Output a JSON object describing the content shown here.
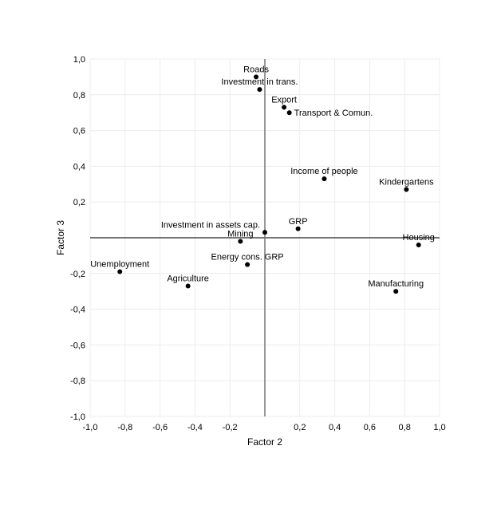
{
  "chart_data": {
    "type": "scatter",
    "title": "",
    "xlabel": "Factor 2",
    "ylabel": "Factor 3",
    "xlim": [
      -1.0,
      1.0
    ],
    "ylim": [
      -1.0,
      1.0
    ],
    "grid": true,
    "x_ticks": [
      "-1,0",
      "-0,8",
      "-0,6",
      "-0,4",
      "-0,2",
      "0,2",
      "0,4",
      "0,6",
      "0,8",
      "1,0"
    ],
    "x_tick_values": [
      -1.0,
      -0.8,
      -0.6,
      -0.4,
      -0.2,
      0.2,
      0.4,
      0.6,
      0.8,
      1.0
    ],
    "y_ticks": [
      "1,0",
      "0,8",
      "0,6",
      "0,4",
      "0,2",
      "-0,2",
      "-0,4",
      "-0,6",
      "-0,8",
      "-1,0"
    ],
    "y_tick_values": [
      1.0,
      0.8,
      0.6,
      0.4,
      0.2,
      -0.2,
      -0.4,
      -0.6,
      -0.8,
      -1.0
    ],
    "points": [
      {
        "label": "Roads",
        "x": -0.05,
        "y": 0.9
      },
      {
        "label": "Investment in trans.",
        "x": -0.03,
        "y": 0.83
      },
      {
        "label": "Export",
        "x": 0.11,
        "y": 0.73
      },
      {
        "label": "Transport & Comun.",
        "x": 0.14,
        "y": 0.7
      },
      {
        "label": "Income of people",
        "x": 0.34,
        "y": 0.33
      },
      {
        "label": "Kindergartens",
        "x": 0.81,
        "y": 0.27
      },
      {
        "label": "GRP",
        "x": 0.19,
        "y": 0.05
      },
      {
        "label": "Investment in assets cap.",
        "x": 0.0,
        "y": 0.03
      },
      {
        "label": "Mining",
        "x": -0.14,
        "y": -0.02
      },
      {
        "label": "Housing",
        "x": 0.88,
        "y": -0.04
      },
      {
        "label": "Energy cons. GRP",
        "x": -0.1,
        "y": -0.15
      },
      {
        "label": "Unemployment",
        "x": -0.83,
        "y": -0.19
      },
      {
        "label": "Agriculture",
        "x": -0.44,
        "y": -0.27
      },
      {
        "label": "Manufacturing",
        "x": 0.75,
        "y": -0.3
      }
    ]
  }
}
